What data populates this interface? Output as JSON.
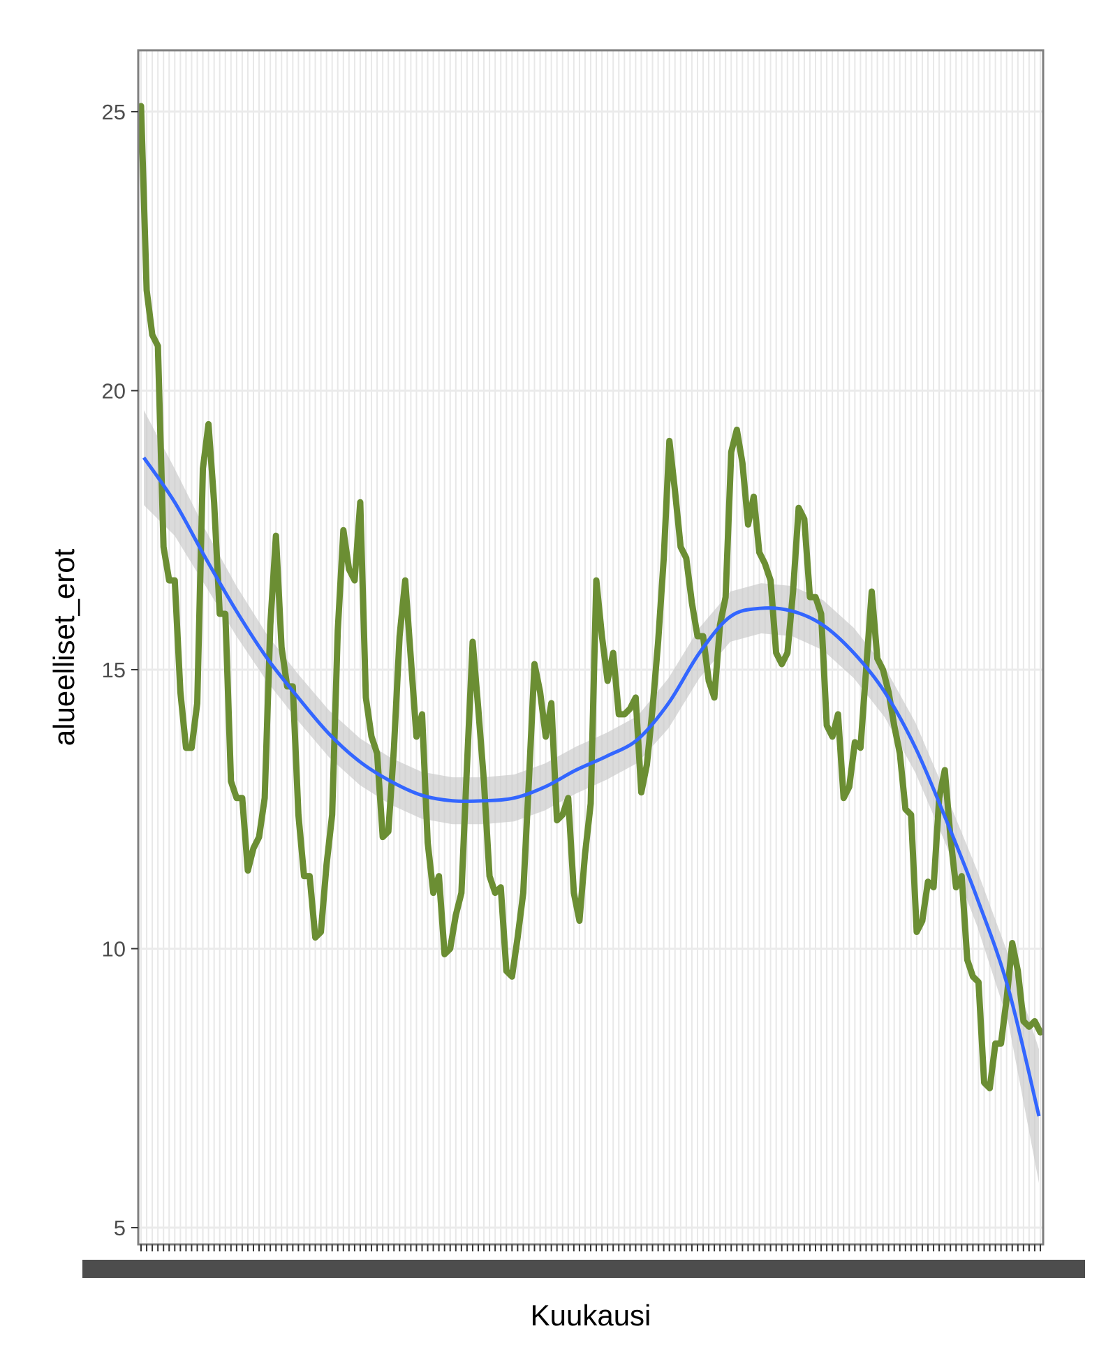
{
  "chart_data": {
    "type": "line",
    "xlabel": "Kuukausi",
    "ylabel": "alueelliset_erot",
    "ylim": [
      4.7,
      26.1
    ],
    "yticks": [
      5,
      10,
      15,
      20,
      25
    ],
    "grid": true,
    "x_tick_labels_visible": "overlapping, unreadable",
    "series": [
      {
        "values": [
          25.1,
          21.8,
          21.0,
          20.8,
          17.2,
          16.6,
          16.6,
          14.6,
          13.6,
          13.6,
          14.4,
          18.6,
          19.4,
          18.0,
          16.0,
          16.0,
          13.0,
          12.7,
          12.7,
          11.4,
          11.8,
          12.0,
          12.7,
          15.8,
          17.4,
          15.4,
          14.7,
          14.7,
          12.4,
          11.3,
          11.3,
          10.2,
          10.3,
          11.5,
          12.4,
          15.7,
          17.5,
          16.8,
          16.6,
          18.0,
          14.5,
          13.8,
          13.5,
          12.0,
          12.1,
          13.6,
          15.6,
          16.6,
          15.2,
          13.8,
          14.2,
          11.9,
          11.0,
          11.3,
          9.9,
          10.0,
          10.6,
          11.0,
          13.3,
          15.5,
          14.3,
          13.0,
          11.3,
          11.0,
          11.1,
          9.6,
          9.5,
          10.2,
          11.0,
          13.0,
          15.1,
          14.6,
          13.8,
          14.4,
          12.3,
          12.4,
          12.7,
          11.0,
          10.5,
          11.7,
          12.6,
          16.6,
          15.6,
          14.8,
          15.3,
          14.2,
          14.2,
          14.3,
          14.5,
          12.8,
          13.3,
          14.3,
          15.5,
          17.0,
          19.1,
          18.2,
          17.2,
          17.0,
          16.2,
          15.6,
          15.6,
          14.8,
          14.5,
          15.8,
          16.3,
          18.9,
          19.3,
          18.7,
          17.6,
          18.1,
          17.1,
          16.9,
          16.6,
          15.3,
          15.1,
          15.3,
          16.4,
          17.9,
          17.7,
          16.3,
          16.3,
          16.0,
          14.0,
          13.8,
          14.2,
          12.7,
          12.9,
          13.7,
          13.6,
          15.0,
          16.4,
          15.2,
          15.0,
          14.6,
          14.0,
          13.5,
          12.5,
          12.4,
          10.3,
          10.5,
          11.2,
          11.1,
          12.7,
          13.2,
          12.0,
          11.1,
          11.3,
          9.8,
          9.5,
          9.4,
          7.6,
          7.5,
          8.3,
          8.3,
          9.1,
          10.1,
          9.6,
          8.7,
          8.6,
          8.7,
          8.5
        ],
        "color": "#6b8e33"
      },
      {
        "type": "smooth",
        "values": [
          18.8,
          18.0,
          17.0,
          16.05,
          15.2,
          14.5,
          13.85,
          13.35,
          13.0,
          12.75,
          12.65,
          12.65,
          12.7,
          12.9,
          13.2,
          13.45,
          13.75,
          14.4,
          15.3,
          15.95,
          16.1,
          16.05,
          15.8,
          15.3,
          14.6,
          13.6,
          12.3,
          10.9,
          9.3,
          7.0
        ],
        "se_halfwidth": [
          0.85,
          0.6,
          0.5,
          0.45,
          0.42,
          0.42,
          0.42,
          0.42,
          0.42,
          0.42,
          0.42,
          0.42,
          0.42,
          0.42,
          0.42,
          0.42,
          0.42,
          0.45,
          0.45,
          0.45,
          0.45,
          0.45,
          0.45,
          0.45,
          0.45,
          0.45,
          0.45,
          0.5,
          0.6,
          1.2
        ],
        "color": "#3366ff",
        "band_color": "#c8c8c8"
      }
    ]
  }
}
